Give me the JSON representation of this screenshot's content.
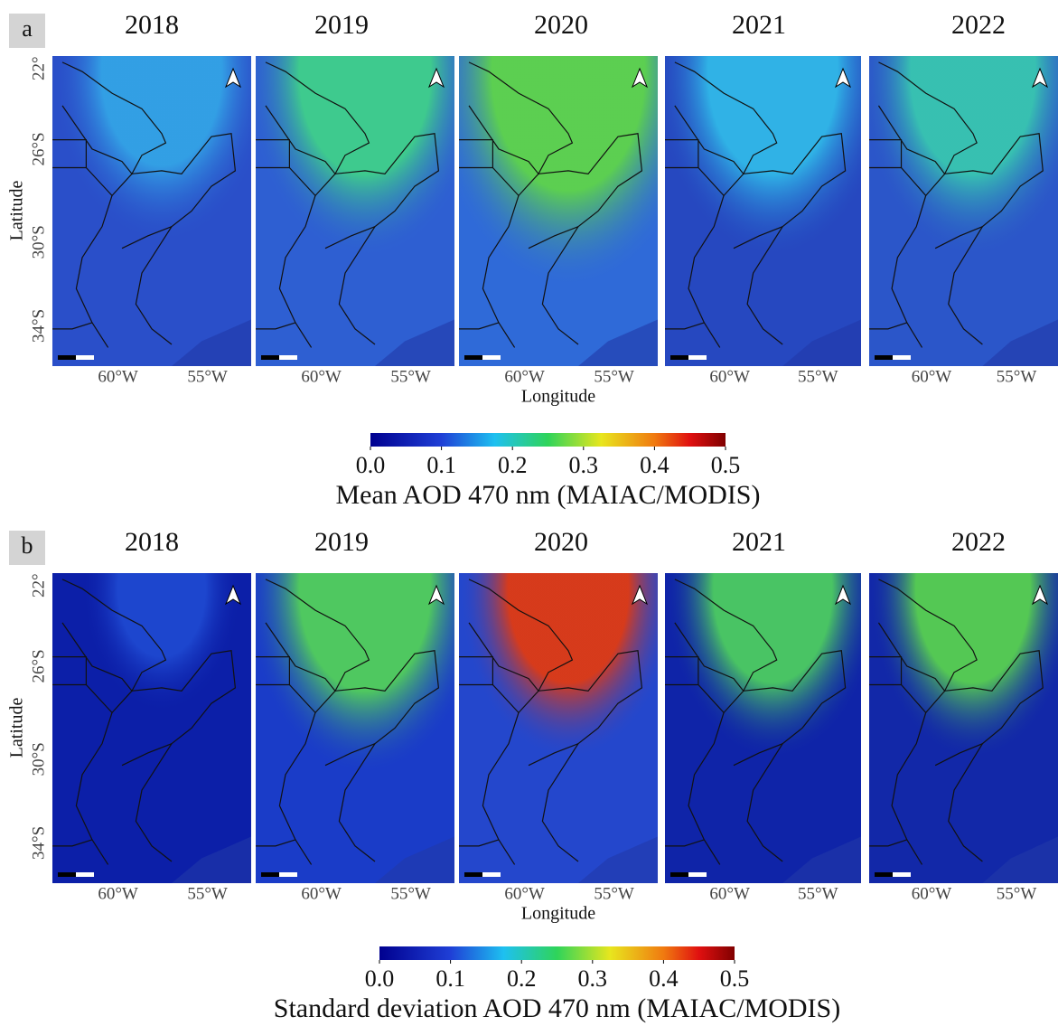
{
  "panels": [
    {
      "label": "a",
      "years": [
        "2018",
        "2019",
        "2020",
        "2021",
        "2022"
      ],
      "y_label": "Latitude",
      "y_ticks": [
        "22°",
        "26°S",
        "30°S",
        "34°S"
      ],
      "x_label": "Longitude",
      "x_ticks": [
        "60°W",
        "55°W"
      ],
      "colorbar": {
        "clim": [
          0,
          0.5
        ],
        "ticks": [
          {
            "value": 0,
            "label": "0.0"
          },
          {
            "value": 0.1,
            "label": "0.1"
          },
          {
            "value": 0.2,
            "label": "0.2"
          },
          {
            "value": 0.3,
            "label": "0.3"
          },
          {
            "value": 0.4,
            "label": "0.4"
          },
          {
            "value": 0.5,
            "label": "0.5"
          }
        ],
        "label": "Mean AOD 470 nm (MAIAC/MODIS)"
      }
    },
    {
      "label": "b",
      "years": [
        "2018",
        "2019",
        "2020",
        "2021",
        "2022"
      ],
      "y_label": "Latitude",
      "y_ticks": [
        "22°",
        "26°S",
        "30°S",
        "34°S"
      ],
      "x_label": "Longitude",
      "x_ticks": [
        "60°W",
        "55°W"
      ],
      "colorbar": {
        "clim": [
          0,
          0.5
        ],
        "ticks": [
          {
            "value": 0,
            "label": "0.0"
          },
          {
            "value": 0.1,
            "label": "0.1"
          },
          {
            "value": 0.2,
            "label": "0.2"
          },
          {
            "value": 0.3,
            "label": "0.3"
          },
          {
            "value": 0.4,
            "label": "0.4"
          },
          {
            "value": 0.5,
            "label": "0.5"
          }
        ],
        "label": "Standard deviation AOD 470 nm (MAIAC/MODIS)"
      }
    }
  ]
}
